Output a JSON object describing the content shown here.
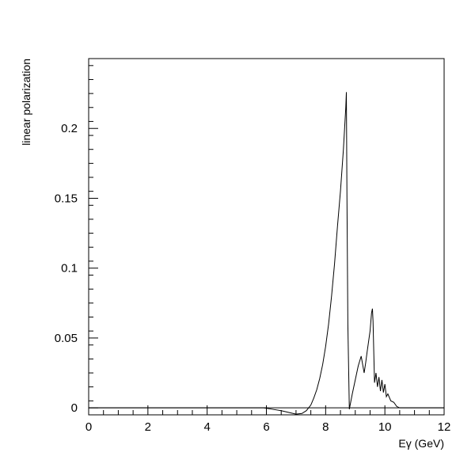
{
  "chart_data": {
    "type": "line",
    "title": "",
    "xlabel": "Eγ (GeV)",
    "ylabel": "linear polarization",
    "xlim": [
      0,
      12
    ],
    "ylim": [
      -0.005,
      0.25
    ],
    "x_ticks": [
      0,
      2,
      4,
      6,
      8,
      10,
      12
    ],
    "x_tick_labels": [
      "0",
      "2",
      "4",
      "6",
      "8",
      "10",
      "12"
    ],
    "y_ticks": [
      0,
      0.05,
      0.1,
      0.15,
      0.2
    ],
    "y_tick_labels": [
      "0",
      "0.05",
      "0.1",
      "0.15",
      "0.2"
    ],
    "grid": false,
    "series": [
      {
        "color": "#000000",
        "x": [
          0,
          5.9,
          6.2,
          6.5,
          6.8,
          7.0,
          7.2,
          7.35,
          7.5,
          7.6,
          7.7,
          7.8,
          7.9,
          8.0,
          8.1,
          8.2,
          8.3,
          8.4,
          8.5,
          8.6,
          8.68,
          8.7,
          8.72,
          8.75,
          8.8,
          8.9,
          9.0,
          9.1,
          9.2,
          9.3,
          9.35,
          9.4,
          9.5,
          9.55,
          9.58,
          9.6,
          9.65,
          9.7,
          9.75,
          9.8,
          9.85,
          9.9,
          9.95,
          10.0,
          10.05,
          10.1,
          10.2,
          10.3,
          10.4,
          10.5,
          12.0
        ],
        "y": [
          0,
          0,
          -0.001,
          -0.002,
          -0.0035,
          -0.0045,
          -0.004,
          -0.002,
          0.002,
          0.007,
          0.013,
          0.021,
          0.031,
          0.044,
          0.06,
          0.08,
          0.103,
          0.13,
          0.155,
          0.185,
          0.215,
          0.226,
          0.15,
          0.06,
          -0.001,
          0.01,
          0.02,
          0.03,
          0.037,
          0.025,
          0.032,
          0.04,
          0.055,
          0.068,
          0.071,
          0.062,
          0.018,
          0.025,
          0.015,
          0.022,
          0.012,
          0.02,
          0.011,
          0.017,
          0.008,
          0.01,
          0.005,
          0.004,
          0.001,
          0,
          0
        ]
      }
    ]
  }
}
